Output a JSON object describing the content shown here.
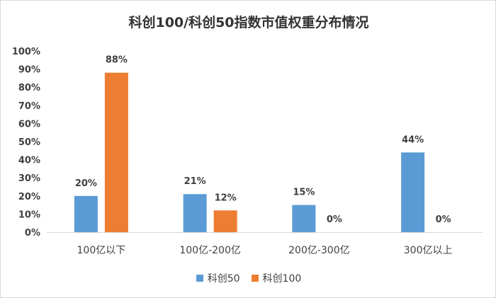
{
  "chart_data": {
    "type": "bar",
    "title": "科创100/科创50指数市值权重分布情况",
    "categories": [
      "100亿以下",
      "100亿-200亿",
      "200亿-300亿",
      "300亿以上"
    ],
    "series": [
      {
        "name": "科创50",
        "color": "#5B9BD5",
        "values": [
          20,
          21,
          15,
          44
        ],
        "labels": [
          "20%",
          "21%",
          "15%",
          "44%"
        ]
      },
      {
        "name": "科创100",
        "color": "#ED7D31",
        "values": [
          88,
          12,
          0,
          0
        ],
        "labels": [
          "88%",
          "12%",
          "0%",
          "0%"
        ]
      }
    ],
    "ylim": [
      0,
      100
    ],
    "yticks": [
      "0%",
      "10%",
      "20%",
      "30%",
      "40%",
      "50%",
      "60%",
      "70%",
      "80%",
      "90%",
      "100%"
    ],
    "grid": false,
    "legend_position": "bottom"
  }
}
